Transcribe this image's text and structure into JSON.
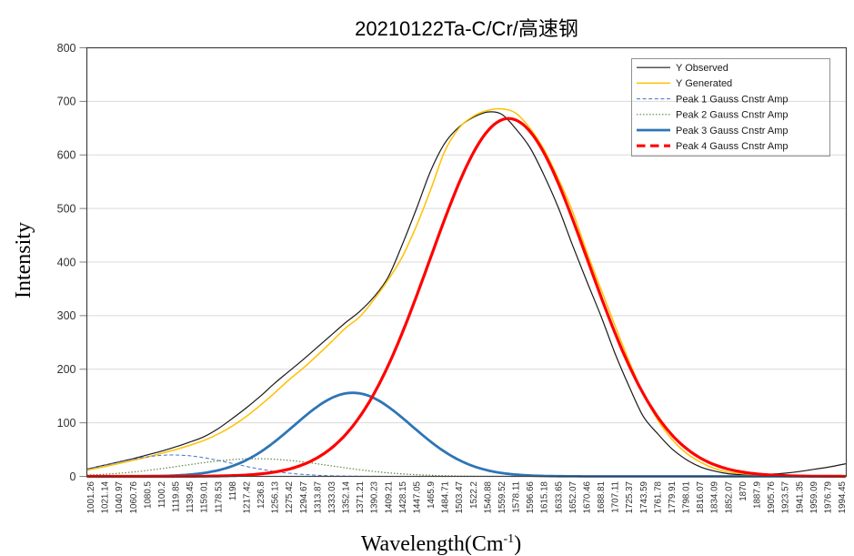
{
  "chart_data": {
    "type": "line",
    "title": "20210122Ta-C/Cr/高速钢",
    "xlabel": "Wavelength(Cm-1)",
    "xlabel_parts": {
      "main": "Wavelength(Cm",
      "sup": "-1",
      "close": ")"
    },
    "ylabel": "Intensity",
    "ylim": [
      0,
      800
    ],
    "ytick_step": 100,
    "grid": "horizontal",
    "legend_position": "top-right",
    "x_axis_type": "category",
    "x_ticks": [
      "1001.26",
      "1021.14",
      "1040.97",
      "1060.76",
      "1080.5",
      "1100.2",
      "1119.85",
      "1139.45",
      "1159.01",
      "1178.53",
      "1198",
      "1217.42",
      "1236.8",
      "1256.13",
      "1275.42",
      "1294.67",
      "1313.87",
      "1333.03",
      "1352.14",
      "1371.21",
      "1390.23",
      "1409.21",
      "1428.15",
      "1447.05",
      "1465.9",
      "1484.71",
      "1503.47",
      "1522.2",
      "1540.88",
      "1559.52",
      "1578.11",
      "1596.66",
      "1615.18",
      "1633.65",
      "1652.07",
      "1670.46",
      "1688.81",
      "1707.11",
      "1725.37",
      "1743.59",
      "1761.78",
      "1779.91",
      "1798.01",
      "1816.07",
      "1834.09",
      "1852.07",
      "1870",
      "1887.9",
      "1905.76",
      "1923.57",
      "1941.35",
      "1959.09",
      "1976.79",
      "1994.45"
    ],
    "y_ticks": [
      0,
      100,
      200,
      300,
      400,
      500,
      600,
      700,
      800
    ],
    "series": [
      {
        "name": "Y Observed",
        "color": "#1A1A1A",
        "line_style": "solid",
        "chart_line_style": "solid",
        "width": 1.2,
        "values": [
          15,
          21,
          27,
          33,
          40,
          47,
          55,
          64,
          74,
          89,
          108,
          128,
          150,
          174,
          196,
          218,
          241,
          264,
          287,
          308,
          335,
          372,
          433,
          500,
          570,
          622,
          652,
          670,
          680,
          676,
          649,
          614,
          562,
          502,
          432,
          365,
          300,
          230,
          168,
          112,
          80,
          52,
          32,
          18,
          10,
          5,
          3,
          3,
          4,
          6,
          9,
          13,
          17,
          22
        ]
      },
      {
        "name": "Y Generated",
        "color": "#FFC000",
        "line_style": "solid",
        "chart_line_style": "solid",
        "width": 1.5,
        "values": [
          13,
          18,
          24,
          30,
          36,
          43,
          50,
          58,
          67,
          79,
          94,
          112,
          133,
          156,
          180,
          202,
          226,
          251,
          277,
          298,
          330,
          367,
          410,
          468,
          535,
          607,
          650,
          672,
          683,
          686,
          678,
          650,
          610,
          556,
          495,
          420,
          350,
          282,
          215,
          155,
          106,
          70,
          44,
          27,
          15,
          8,
          5,
          3,
          2,
          2,
          1,
          1,
          1,
          1
        ]
      },
      {
        "name": "Peak 1  Gauss Cnstr Amp",
        "color": "#4472C4",
        "line_style": "dashed",
        "chart_line_style": "dashed",
        "width": 1.0,
        "gauss": {
          "center_index": 5.8,
          "center_cm1": 1116,
          "amplitude": 40,
          "sigma_index": 4.2
        }
      },
      {
        "name": "Peak 2  Gauss Cnstr Amp",
        "color": "#548235",
        "line_style": "dotted",
        "chart_line_style": "dotted",
        "width": 1.2,
        "gauss": {
          "center_index": 11.7,
          "center_cm1": 1231,
          "amplitude": 33,
          "sigma_index": 5.2
        }
      },
      {
        "name": "Peak 3  Gauss Cnstr Amp",
        "color": "#2E75B6",
        "line_style": "solid",
        "chart_line_style": "solid",
        "width": 2.8,
        "gauss": {
          "center_index": 18.5,
          "center_cm1": 1362,
          "amplitude": 156,
          "sigma_index": 4.15
        }
      },
      {
        "name": "Peak 4  Gauss Cnstr Amp",
        "color": "#FF0000",
        "line_style": "dashed-bold",
        "chart_line_style": "solid",
        "width": 3.2,
        "gauss": {
          "center_index": 29.5,
          "center_cm1": 1569,
          "amplitude": 668,
          "sigma_index": 5.55
        }
      }
    ],
    "colors": {
      "gridline": "#D9D9D9",
      "frame": "#404040",
      "tick_mark": "#808080",
      "legend_border": "#909090",
      "background": "#FFFFFF"
    }
  }
}
